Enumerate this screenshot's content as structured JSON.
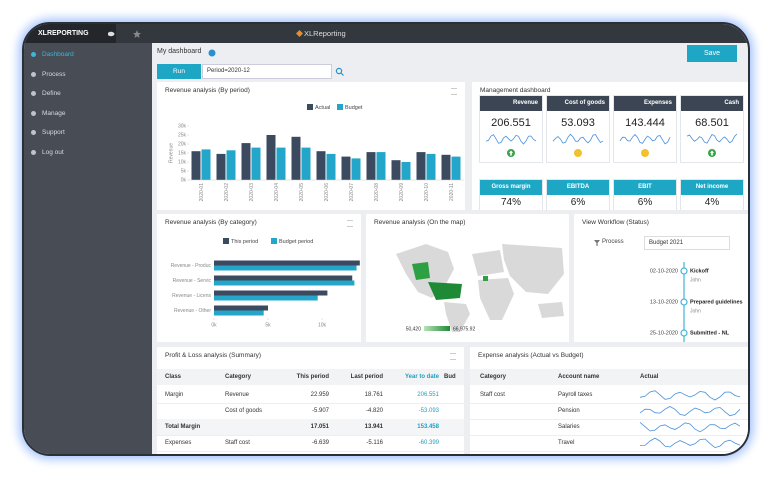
{
  "topbar": {
    "brand": "XLREPORTING",
    "app": "XLReporting"
  },
  "sidebar": {
    "items": [
      "Dashboard",
      "Process",
      "Define",
      "Manage",
      "Support",
      "Log out"
    ]
  },
  "header": {
    "title": "My dashboard",
    "save": "Save",
    "run": "Run",
    "period": "Period=2020-12"
  },
  "management": {
    "title": "Management dashboard",
    "kpis": [
      {
        "label": "Revenue",
        "value": "206.551",
        "status": "up"
      },
      {
        "label": "Cost of goods",
        "value": "53.093",
        "status": "neutral"
      },
      {
        "label": "Expenses",
        "value": "143.444",
        "status": "neutral"
      },
      {
        "label": "Cash",
        "value": "68.501",
        "status": "up"
      }
    ],
    "margins": [
      {
        "label": "Gross margin",
        "value": "74%"
      },
      {
        "label": "EBITDA",
        "value": "6%"
      },
      {
        "label": "EBIT",
        "value": "6%"
      },
      {
        "label": "Net income",
        "value": "4%"
      }
    ]
  },
  "map": {
    "title": "Revenue analysis (On the map)",
    "legend_min": "50,420",
    "legend_max": "66,975.92"
  },
  "workflow": {
    "title": "View Workflow (Status)",
    "filter_label": "Process",
    "filter_value": "Budget 2021",
    "events": [
      {
        "date": "02-10-2020",
        "label": "Kickoff",
        "user": "John"
      },
      {
        "date": "13-10-2020",
        "label": "Prepared guidelines",
        "user": "John"
      },
      {
        "date": "25-10-2020",
        "label": "Submitted - NL"
      }
    ]
  },
  "pnl": {
    "title": "Profit & Loss analysis (Summary)",
    "columns": [
      "Class",
      "Category",
      "This period",
      "Last period",
      "Year to date",
      "Bud"
    ],
    "rows": [
      [
        "Margin",
        "Revenue",
        "22.959",
        "18.761",
        "206.551",
        null
      ],
      [
        null,
        "Cost of goods",
        "-5.907",
        "-4.820",
        "-53.093",
        null
      ],
      [
        "Total Margin",
        null,
        "17.051",
        "13.941",
        "153.458",
        null
      ],
      [
        "Expenses",
        "Staff cost",
        "-6.639",
        "-5.116",
        "-60.399",
        null
      ]
    ]
  },
  "expense": {
    "title": "Expense analysis (Actual vs Budget)",
    "columns": [
      "Category",
      "Account name",
      "Actual"
    ],
    "rows": [
      [
        "Staff cost",
        "Payroll taxes",
        null
      ],
      [
        null,
        "Pension",
        null
      ],
      [
        null,
        "Salaries",
        null
      ],
      [
        null,
        "Travel",
        null
      ]
    ]
  },
  "chart_data": [
    {
      "type": "bar",
      "title": "Revenue analysis (By period)",
      "y_label": "Revenue",
      "categories": [
        "2020-01",
        "2020-02",
        "2020-03",
        "2020-04",
        "2020-05",
        "2020-06",
        "2020-07",
        "2020-08",
        "2020-09",
        "2020-10",
        "2020-11"
      ],
      "series": [
        {
          "name": "Actual",
          "color": "#3b4a5f",
          "values": [
            16,
            14.5,
            20.5,
            25,
            24,
            16,
            13,
            15.5,
            11,
            15.5,
            14
          ]
        },
        {
          "name": "Budget",
          "color": "#23a6c9",
          "values": [
            17,
            16.5,
            18,
            18,
            18,
            14.5,
            12,
            15.5,
            10,
            14.5,
            13
          ]
        }
      ],
      "ylim": [
        0,
        30
      ],
      "yticks": [
        {
          "value": 0,
          "label": "0k"
        },
        {
          "value": 5,
          "label": "5k"
        },
        {
          "value": 10,
          "label": "10k"
        },
        {
          "value": 15,
          "label": "15k"
        },
        {
          "value": 20,
          "label": "20k"
        },
        {
          "value": 25,
          "label": "25k"
        },
        {
          "value": 30,
          "label": "30k"
        }
      ]
    },
    {
      "type": "hbar",
      "title": "Revenue analysis (By category)",
      "categories": [
        "Revenue - Produc",
        "Revenue - Servic",
        "Revenue - Licens",
        "Revenue - Other"
      ],
      "series": [
        {
          "name": "This period",
          "color": "#3b4a5f",
          "values": [
            13.5,
            12.8,
            10.5,
            5
          ]
        },
        {
          "name": "Budget period",
          "color": "#23a6c9",
          "values": [
            13.2,
            13,
            9.6,
            4.6
          ]
        }
      ],
      "xlim": [
        0,
        15
      ],
      "xticks": [
        {
          "value": 0,
          "label": "0k"
        },
        {
          "value": 5,
          "label": "5k"
        },
        {
          "value": 10,
          "label": "10k"
        }
      ]
    }
  ]
}
